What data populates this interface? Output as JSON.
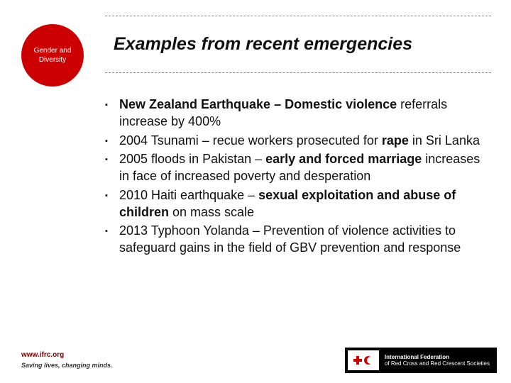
{
  "colors": {
    "accent": "#cc0000",
    "text": "#111111",
    "divider": "#888888",
    "footer_brand": "#7a0000",
    "logo_bg": "#000000",
    "background": "#ffffff"
  },
  "circle": {
    "label": "Gender and Diversity"
  },
  "title": "Examples from recent emergencies",
  "bullets": [
    {
      "segments": [
        {
          "text": "New Zealand Earthquake – Domestic violence ",
          "bold": true
        },
        {
          "text": "referrals increase by 400%",
          "bold": false
        }
      ]
    },
    {
      "segments": [
        {
          "text": "2004 Tsunami – recue workers prosecuted for ",
          "bold": false
        },
        {
          "text": "rape",
          "bold": true
        },
        {
          "text": " in Sri Lanka",
          "bold": false
        }
      ]
    },
    {
      "segments": [
        {
          "text": "2005 floods in Pakistan – ",
          "bold": false
        },
        {
          "text": "early and forced marriage ",
          "bold": true
        },
        {
          "text": "increases in face of increased poverty and desperation",
          "bold": false
        }
      ]
    },
    {
      "segments": [
        {
          "text": "2010 Haiti earthquake – ",
          "bold": false
        },
        {
          "text": "sexual exploitation and abuse of children ",
          "bold": true
        },
        {
          "text": "on mass scale",
          "bold": false
        }
      ]
    },
    {
      "segments": [
        {
          "text": "2013 Typhoon Yolanda – Prevention of violence activities to safeguard gains in the field of GBV prevention and response",
          "bold": false
        }
      ]
    }
  ],
  "footer": {
    "url": "www.ifrc.org",
    "tagline": "Saving lives, changing minds.",
    "logo_line1": "International Federation",
    "logo_line2": "of Red Cross and Red Crescent Societies"
  },
  "typography": {
    "title_fontsize": 25,
    "body_fontsize": 18,
    "circle_fontsize": 10,
    "footer_fontsize": 10,
    "logo_fontsize": 8
  }
}
